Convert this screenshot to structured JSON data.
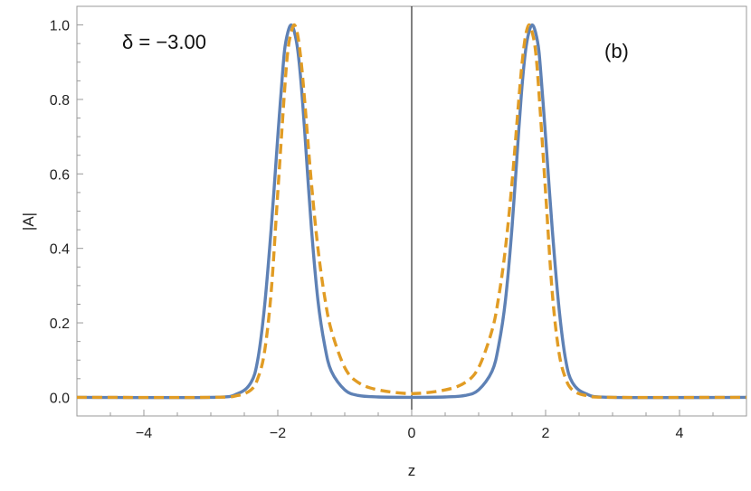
{
  "chart_data": {
    "type": "line",
    "title": "",
    "xlabel": "z",
    "ylabel": "|A|",
    "xlim": [
      -5,
      5
    ],
    "ylim": [
      -0.05,
      1.05
    ],
    "grid": false,
    "frame": true,
    "x_ticks": [
      -4,
      -2,
      0,
      2,
      4
    ],
    "x_tick_labels": [
      "−4",
      "−2",
      "0",
      "2",
      "4"
    ],
    "y_ticks": [
      0.0,
      0.2,
      0.4,
      0.6,
      0.8,
      1.0
    ],
    "y_tick_labels": [
      "0.0",
      "0.2",
      "0.4",
      "0.6",
      "0.8",
      "1.0"
    ],
    "annotations": {
      "delta": "δ = −3.00",
      "panel": "(b)"
    },
    "series": [
      {
        "style": "solid",
        "color": "#5E81B5",
        "x": [
          -5.0,
          -3.0,
          -2.6,
          -2.4,
          -2.3,
          -2.2,
          -2.1,
          -2.0,
          -1.95,
          -1.9,
          -1.85,
          -1.8,
          -1.75,
          -1.7,
          -1.65,
          -1.6,
          -1.5,
          -1.4,
          -1.3,
          -1.2,
          -1.0,
          -0.8,
          -0.5,
          0.0,
          0.5,
          0.8,
          1.0,
          1.2,
          1.3,
          1.4,
          1.5,
          1.6,
          1.65,
          1.7,
          1.75,
          1.8,
          1.85,
          1.9,
          1.95,
          2.0,
          2.1,
          2.2,
          2.3,
          2.4,
          2.6,
          3.0,
          5.0
        ],
        "y": [
          0.0,
          0.0,
          0.01,
          0.04,
          0.1,
          0.24,
          0.45,
          0.7,
          0.82,
          0.93,
          0.98,
          1.0,
          0.98,
          0.93,
          0.84,
          0.72,
          0.46,
          0.26,
          0.14,
          0.07,
          0.02,
          0.005,
          0.001,
          0.0,
          0.001,
          0.005,
          0.02,
          0.07,
          0.14,
          0.26,
          0.46,
          0.72,
          0.84,
          0.93,
          0.98,
          1.0,
          0.98,
          0.93,
          0.82,
          0.7,
          0.45,
          0.24,
          0.1,
          0.04,
          0.01,
          0.0,
          0.0
        ]
      },
      {
        "style": "dashed",
        "color": "#E19C24",
        "x": [
          -5.0,
          -3.0,
          -2.6,
          -2.4,
          -2.3,
          -2.2,
          -2.1,
          -2.0,
          -1.9,
          -1.85,
          -1.8,
          -1.75,
          -1.7,
          -1.65,
          -1.6,
          -1.5,
          -1.4,
          -1.3,
          -1.2,
          -1.0,
          -0.8,
          -0.5,
          0.0,
          0.5,
          0.8,
          1.0,
          1.2,
          1.3,
          1.4,
          1.5,
          1.6,
          1.65,
          1.7,
          1.75,
          1.8,
          1.85,
          1.9,
          2.0,
          2.1,
          2.2,
          2.3,
          2.4,
          2.6,
          3.0,
          5.0
        ],
        "y": [
          0.0,
          0.0,
          0.005,
          0.02,
          0.05,
          0.12,
          0.28,
          0.55,
          0.82,
          0.93,
          0.98,
          1.0,
          0.97,
          0.9,
          0.8,
          0.58,
          0.4,
          0.27,
          0.18,
          0.08,
          0.04,
          0.02,
          0.01,
          0.02,
          0.04,
          0.08,
          0.18,
          0.27,
          0.4,
          0.58,
          0.8,
          0.9,
          0.97,
          1.0,
          0.98,
          0.93,
          0.82,
          0.55,
          0.28,
          0.12,
          0.05,
          0.02,
          0.005,
          0.0,
          0.0
        ]
      }
    ]
  }
}
